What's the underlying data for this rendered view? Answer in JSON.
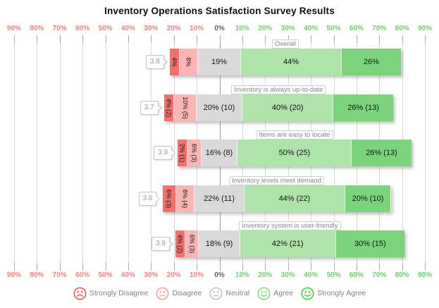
{
  "title": "Inventory Operations Satisfaction Survey Results",
  "axis": {
    "ticks": [
      {
        "label": "90%",
        "value": -90,
        "sentiment": "negative"
      },
      {
        "label": "80%",
        "value": -80,
        "sentiment": "negative"
      },
      {
        "label": "70%",
        "value": -70,
        "sentiment": "negative"
      },
      {
        "label": "60%",
        "value": -60,
        "sentiment": "negative"
      },
      {
        "label": "50%",
        "value": -50,
        "sentiment": "negative"
      },
      {
        "label": "40%",
        "value": -40,
        "sentiment": "negative"
      },
      {
        "label": "30%",
        "value": -30,
        "sentiment": "negative"
      },
      {
        "label": "20%",
        "value": -20,
        "sentiment": "negative"
      },
      {
        "label": "10%",
        "value": -10,
        "sentiment": "negative"
      },
      {
        "label": "0%",
        "value": 0,
        "sentiment": "zero"
      },
      {
        "label": "10%",
        "value": 10,
        "sentiment": "positive"
      },
      {
        "label": "20%",
        "value": 20,
        "sentiment": "positive"
      },
      {
        "label": "30%",
        "value": 30,
        "sentiment": "positive"
      },
      {
        "label": "40%",
        "value": 40,
        "sentiment": "positive"
      },
      {
        "label": "50%",
        "value": 50,
        "sentiment": "positive"
      },
      {
        "label": "60%",
        "value": 60,
        "sentiment": "positive"
      },
      {
        "label": "70%",
        "value": 70,
        "sentiment": "positive"
      },
      {
        "label": "80%",
        "value": 80,
        "sentiment": "positive"
      },
      {
        "label": "90%",
        "value": 90,
        "sentiment": "positive"
      }
    ]
  },
  "colors": {
    "strongly_disagree": "#f3706c",
    "disagree": "#f9b6b4",
    "neutral": "#d9d9d9",
    "agree": "#aee3aa",
    "strongly_agree": "#7bd47b",
    "negative_axis_label": "#f4827e",
    "positive_axis_label": "#6ed06e",
    "zero_axis_label": "#5f5f5f"
  },
  "legend": {
    "items": [
      {
        "label": "Strongly Disagree",
        "icon": "strongly-disagree-face-icon",
        "mouth": "deep-frown",
        "color": "#ee5450"
      },
      {
        "label": "Disagree",
        "icon": "disagree-face-icon",
        "mouth": "frown",
        "color": "#f59d9a"
      },
      {
        "label": "Neutral",
        "icon": "neutral-face-icon",
        "mouth": "flat",
        "color": "#bfbfbf"
      },
      {
        "label": "Agree",
        "icon": "agree-face-icon",
        "mouth": "smile",
        "color": "#7fd97a"
      },
      {
        "label": "Strongly Agree",
        "icon": "strongly-agree-face-icon",
        "mouth": "big-smile",
        "color": "#3ecc3e"
      }
    ]
  },
  "chart_data": {
    "type": "bar",
    "subtype": "diverging-stacked-likert",
    "title": "Inventory Operations Satisfaction Survey Results",
    "categories": [
      "Overall",
      "Inventory is always up-to-date",
      "Items are easy to locate",
      "Inventory levels meet demand",
      "Inventory system is user-friendly"
    ],
    "scores": [
      "3.8",
      "3.7",
      "3.9",
      "3.6",
      "3.9"
    ],
    "series": [
      {
        "name": "Strongly Disagree",
        "values": [
          4,
          4,
          2,
          6,
          4
        ],
        "labels": [
          "4%",
          "4% (2)",
          "2% (1)",
          "6% (3)",
          "4% (2)"
        ]
      },
      {
        "name": "Disagree",
        "values": [
          8,
          10,
          6,
          8,
          6
        ],
        "labels": [
          "8%",
          "10% (5)",
          "6% (3)",
          "8% (4)",
          "6% (3)"
        ]
      },
      {
        "name": "Neutral",
        "values": [
          19,
          20,
          16,
          22,
          18
        ],
        "labels": [
          "19%",
          "20% (10)",
          "16% (8)",
          "22% (11)",
          "18% (9)"
        ]
      },
      {
        "name": "Agree",
        "values": [
          44,
          40,
          50,
          44,
          42
        ],
        "labels": [
          "44%",
          "40% (20)",
          "50% (25)",
          "44% (22)",
          "42% (21)"
        ]
      },
      {
        "name": "Strongly Agree",
        "values": [
          26,
          26,
          26,
          20,
          30
        ],
        "labels": [
          "26%",
          "26% (13)",
          "26% (13)",
          "20% (10)",
          "30% (15)"
        ]
      }
    ],
    "xlim": [
      -90,
      90
    ],
    "x_tick_step": 10,
    "x_tick_format": "absolute-percent",
    "neutral_centered_on_zero": true,
    "grid": true,
    "legend_position": "bottom"
  }
}
